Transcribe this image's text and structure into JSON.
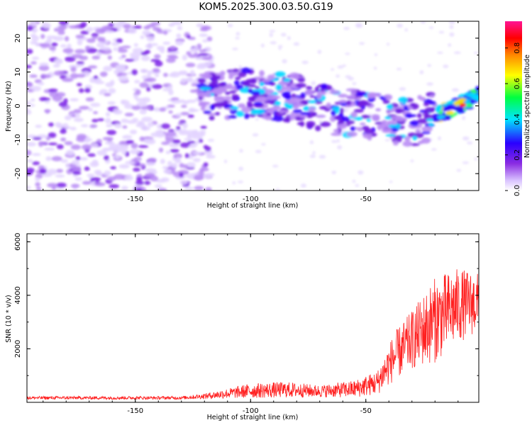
{
  "title": "KOM5.2025.300.03.50.G19",
  "chart_data": [
    {
      "type": "heatmap",
      "name": "spectrogram",
      "xlabel": "Height of straight line (km)",
      "ylabel": "Frequency (Hz)",
      "xlim": [
        -197,
        -1
      ],
      "ylim": [
        -25,
        25
      ],
      "xticks": [
        -150,
        -100,
        -50
      ],
      "xtick_labels": [
        "-150",
        "-100",
        "-50"
      ],
      "yticks": [
        20,
        10,
        0,
        -10,
        -20
      ],
      "ytick_labels": [
        "20",
        "10",
        "0",
        "-10",
        "-20"
      ],
      "signal_track": [
        {
          "x": -120,
          "f": 3
        },
        {
          "x": -100,
          "f": 4
        },
        {
          "x": -80,
          "f": 2
        },
        {
          "x": -60,
          "f": -2
        },
        {
          "x": -45,
          "f": -3
        },
        {
          "x": -30,
          "f": -5
        },
        {
          "x": -20,
          "f": -3
        },
        {
          "x": -10,
          "f": 0
        },
        {
          "x": -1,
          "f": 3
        }
      ],
      "colorbar": {
        "label": "Normalized spectral amplitude",
        "range": [
          0,
          0.95
        ],
        "ticks": [
          0.0,
          0.2,
          0.4,
          0.6,
          0.8
        ],
        "tick_labels": [
          "0.0",
          "0.2",
          "0.4",
          "0.6",
          "0.8"
        ],
        "colors": [
          "#ffffff",
          "#d9c2ff",
          "#8a2be2",
          "#2a00ff",
          "#00e5ff",
          "#00ff40",
          "#ffff00",
          "#ff8800",
          "#ff0000",
          "#ff1493"
        ]
      }
    },
    {
      "type": "line",
      "name": "snr",
      "xlabel": "Height of straight line (km)",
      "ylabel": "SNR (10 * v/v)",
      "xlim": [
        -197,
        -1
      ],
      "ylim": [
        0,
        6300
      ],
      "xticks": [
        -150,
        -100,
        -50
      ],
      "xtick_labels": [
        "-150",
        "-100",
        "-50"
      ],
      "yticks": [
        2000,
        4000,
        6000
      ],
      "ytick_labels": [
        "2000",
        "4000",
        "6000"
      ],
      "color": "#ff2020",
      "envelope": [
        {
          "x": -197,
          "base": 150,
          "amp": 120
        },
        {
          "x": -130,
          "base": 150,
          "amp": 120
        },
        {
          "x": -120,
          "base": 200,
          "amp": 200
        },
        {
          "x": -100,
          "base": 350,
          "amp": 550
        },
        {
          "x": -85,
          "base": 380,
          "amp": 600
        },
        {
          "x": -70,
          "base": 350,
          "amp": 450
        },
        {
          "x": -55,
          "base": 400,
          "amp": 650
        },
        {
          "x": -45,
          "base": 600,
          "amp": 900
        },
        {
          "x": -38,
          "base": 1400,
          "amp": 1800
        },
        {
          "x": -30,
          "base": 2000,
          "amp": 2200
        },
        {
          "x": -20,
          "base": 2600,
          "amp": 3200
        },
        {
          "x": -10,
          "base": 3200,
          "amp": 2800
        },
        {
          "x": -1,
          "base": 3400,
          "amp": 2200
        }
      ]
    }
  ]
}
